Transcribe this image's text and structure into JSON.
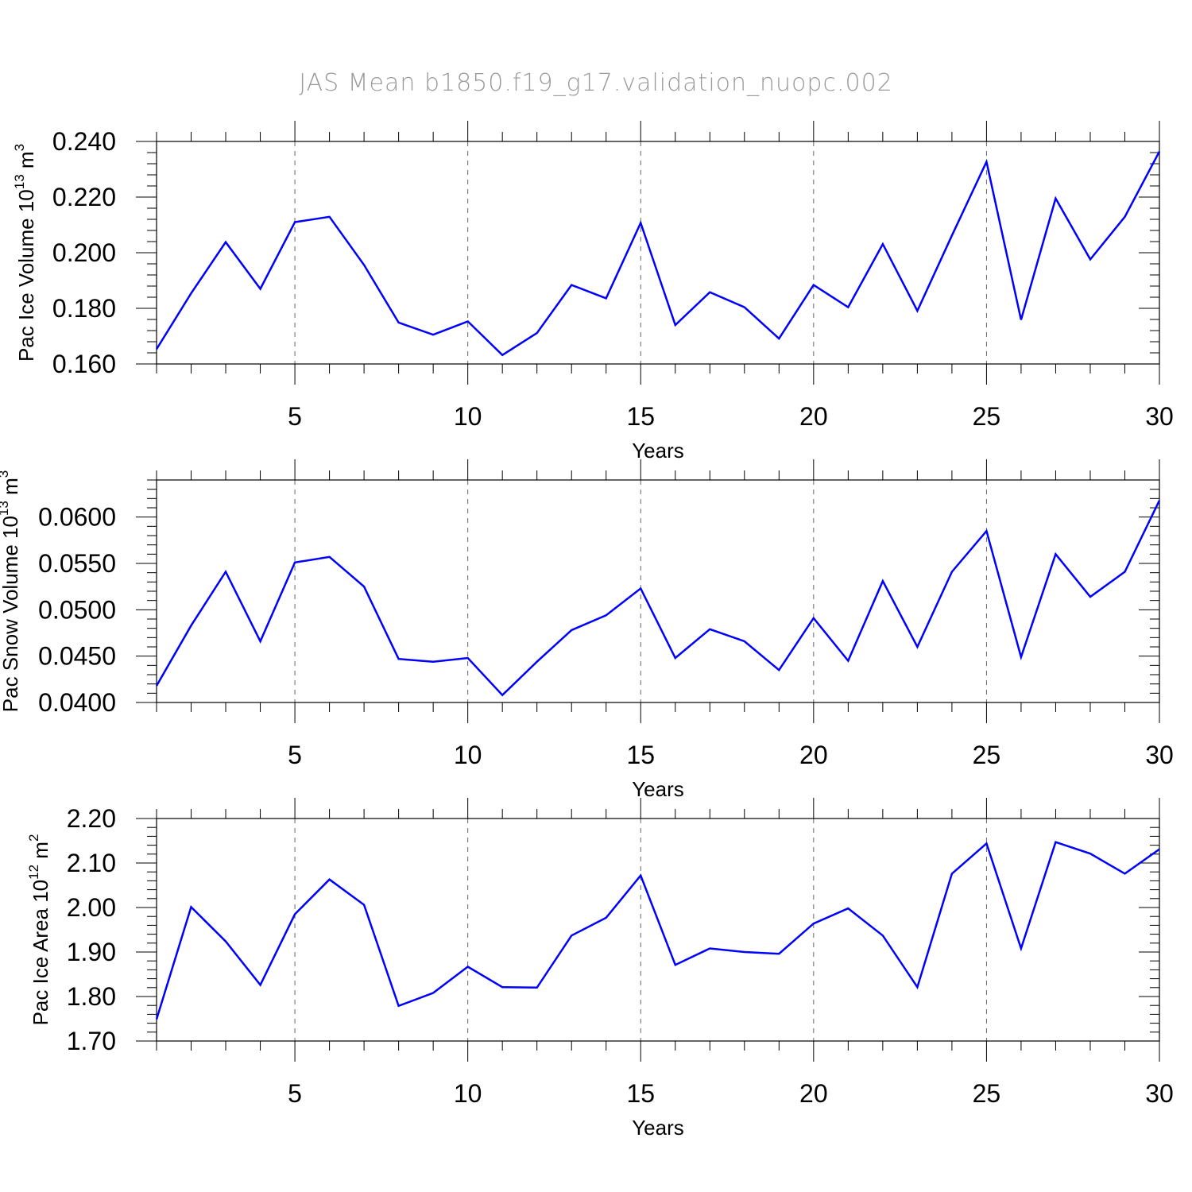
{
  "title": "JAS  Mean  b1850.f19_g17.validation_nuopc.002",
  "colors": {
    "line": "#0000ff",
    "grid": "#666666",
    "title": "#9a9a9a"
  },
  "chart_data": [
    {
      "type": "line",
      "ylabel": "Pac Ice Volume 10",
      "ylabel_sup1": "13",
      "ylabel_unit": " m",
      "ylabel_sup2": "3",
      "xlabel": "Years",
      "xlim": [
        1,
        30
      ],
      "ylim": [
        0.16,
        0.24
      ],
      "yticks": [
        0.16,
        0.18,
        0.2,
        0.22,
        0.24
      ],
      "ytick_labels": [
        "0.160",
        "0.180",
        "0.200",
        "0.220",
        "0.240"
      ],
      "xticks": [
        5,
        10,
        15,
        20,
        25,
        30
      ],
      "xtick_labels": [
        "5",
        "10",
        "15",
        "20",
        "25",
        "30"
      ],
      "grid_x": [
        5,
        10,
        15,
        20,
        25
      ],
      "x": [
        1,
        2,
        3,
        4,
        5,
        6,
        7,
        8,
        9,
        10,
        11,
        12,
        13,
        14,
        15,
        16,
        17,
        18,
        19,
        20,
        21,
        22,
        23,
        24,
        25,
        26,
        27,
        28,
        29,
        30
      ],
      "values": [
        0.1653,
        0.1854,
        0.2038,
        0.187,
        0.211,
        0.2129,
        0.1956,
        0.1749,
        0.1705,
        0.1753,
        0.1632,
        0.1711,
        0.1884,
        0.1836,
        0.2107,
        0.174,
        0.1858,
        0.1804,
        0.1691,
        0.1884,
        0.1804,
        0.2031,
        0.1791,
        0.2062,
        0.2327,
        0.1759,
        0.2195,
        0.1976,
        0.2129,
        0.2364
      ]
    },
    {
      "type": "line",
      "ylabel": "Pac Snow Volume 10",
      "ylabel_sup1": "13",
      "ylabel_unit": " m",
      "ylabel_sup2": "3",
      "xlabel": "Years",
      "xlim": [
        1,
        30
      ],
      "ylim": [
        0.04,
        0.064
      ],
      "yticks": [
        0.04,
        0.045,
        0.05,
        0.055,
        0.06
      ],
      "ytick_labels": [
        "0.0400",
        "0.0450",
        "0.0500",
        "0.0550",
        "0.0600"
      ],
      "xticks": [
        5,
        10,
        15,
        20,
        25,
        30
      ],
      "xtick_labels": [
        "5",
        "10",
        "15",
        "20",
        "25",
        "30"
      ],
      "grid_x": [
        5,
        10,
        15,
        20,
        25
      ],
      "x": [
        1,
        2,
        3,
        4,
        5,
        6,
        7,
        8,
        9,
        10,
        11,
        12,
        13,
        14,
        15,
        16,
        17,
        18,
        19,
        20,
        21,
        22,
        23,
        24,
        25,
        26,
        27,
        28,
        29,
        30
      ],
      "values": [
        0.0418,
        0.0483,
        0.0541,
        0.0466,
        0.0551,
        0.0557,
        0.0525,
        0.0447,
        0.0444,
        0.0448,
        0.0408,
        0.0444,
        0.0478,
        0.0494,
        0.0523,
        0.0448,
        0.0479,
        0.0466,
        0.0435,
        0.0491,
        0.0445,
        0.0531,
        0.046,
        0.0541,
        0.0585,
        0.0449,
        0.056,
        0.0514,
        0.0541,
        0.0618
      ]
    },
    {
      "type": "line",
      "ylabel": "Pac Ice Area 10",
      "ylabel_sup1": "12",
      "ylabel_unit": " m",
      "ylabel_sup2": "2",
      "xlabel": "Years",
      "xlim": [
        1,
        30
      ],
      "ylim": [
        1.7,
        2.2
      ],
      "yticks": [
        1.7,
        1.8,
        1.9,
        2.0,
        2.1,
        2.2
      ],
      "ytick_labels": [
        "1.70",
        "1.80",
        "1.90",
        "2.00",
        "2.10",
        "2.20"
      ],
      "xticks": [
        5,
        10,
        15,
        20,
        25,
        30
      ],
      "xtick_labels": [
        "5",
        "10",
        "15",
        "20",
        "25",
        "30"
      ],
      "grid_x": [
        5,
        10,
        15,
        20,
        25
      ],
      "x": [
        1,
        2,
        3,
        4,
        5,
        6,
        7,
        8,
        9,
        10,
        11,
        12,
        13,
        14,
        15,
        16,
        17,
        18,
        19,
        20,
        21,
        22,
        23,
        24,
        25,
        26,
        27,
        28,
        29,
        30
      ],
      "values": [
        1.749,
        2.001,
        1.924,
        1.826,
        1.985,
        2.063,
        2.006,
        1.779,
        1.808,
        1.867,
        1.821,
        1.82,
        1.937,
        1.977,
        2.072,
        1.871,
        1.908,
        1.9,
        1.896,
        1.964,
        1.998,
        1.937,
        1.821,
        2.076,
        2.144,
        1.908,
        2.147,
        2.121,
        2.076,
        2.131
      ]
    }
  ]
}
